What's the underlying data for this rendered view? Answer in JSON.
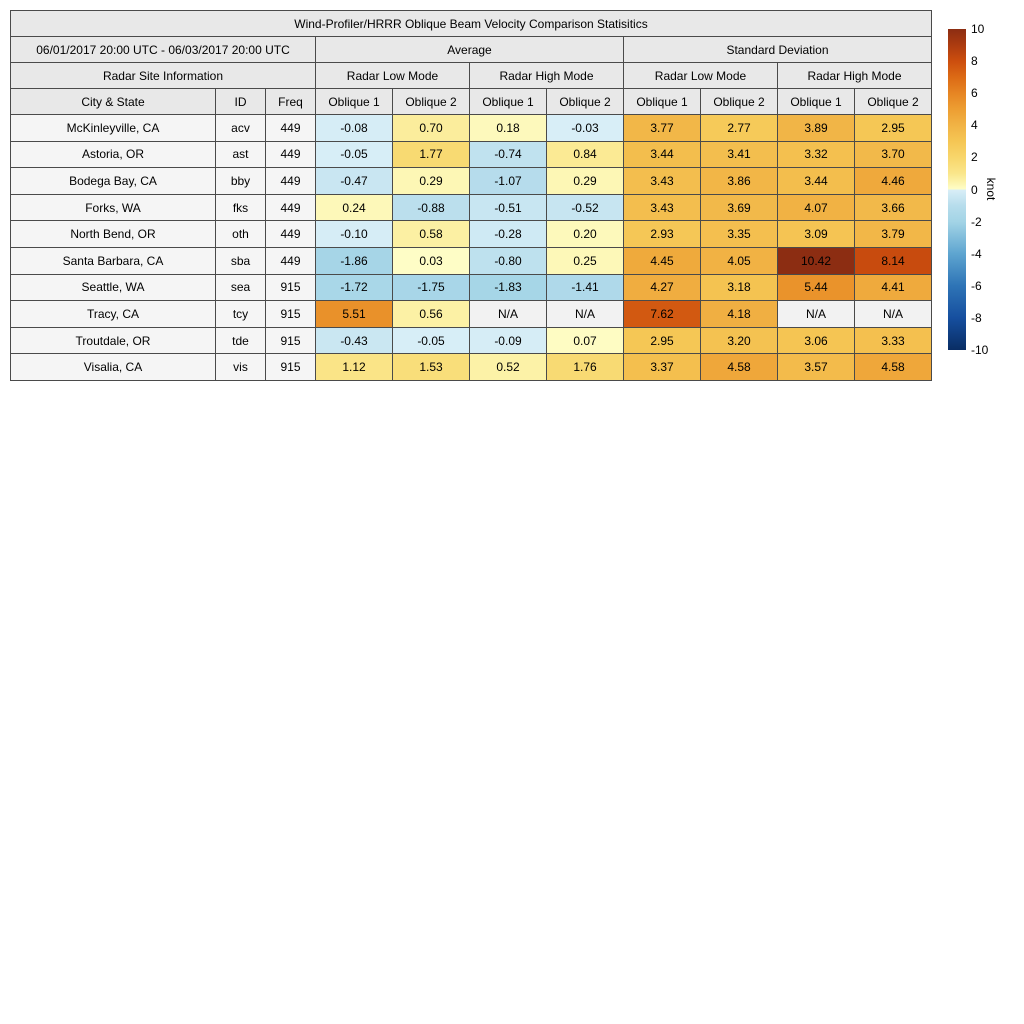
{
  "chart_data": {
    "type": "heatmap",
    "title": "Wind-Profiler/HRRR Oblique Beam Velocity Comparison Statisitics",
    "date_range": "06/01/2017 20:00 UTC - 06/03/2017 20:00 UTC",
    "groups": {
      "site_info": "Radar Site Information",
      "average": "Average",
      "std_dev": "Standard Deviation",
      "low_mode": "Radar Low Mode",
      "high_mode": "Radar High Mode"
    },
    "columns": {
      "city": "City & State",
      "id": "ID",
      "freq": "Freq",
      "oblique1": "Oblique 1",
      "oblique2": "Oblique 2"
    },
    "na_text": "N/A",
    "rows": [
      {
        "city": "McKinleyville, CA",
        "id": "acv",
        "freq": "449",
        "values": [
          -0.08,
          0.7,
          0.18,
          -0.03,
          3.77,
          2.77,
          3.89,
          2.95
        ]
      },
      {
        "city": "Astoria, OR",
        "id": "ast",
        "freq": "449",
        "values": [
          -0.05,
          1.77,
          -0.74,
          0.84,
          3.44,
          3.41,
          3.32,
          3.7
        ]
      },
      {
        "city": "Bodega Bay, CA",
        "id": "bby",
        "freq": "449",
        "values": [
          -0.47,
          0.29,
          -1.07,
          0.29,
          3.43,
          3.86,
          3.44,
          4.46
        ]
      },
      {
        "city": "Forks, WA",
        "id": "fks",
        "freq": "449",
        "values": [
          0.24,
          -0.88,
          -0.51,
          -0.52,
          3.43,
          3.69,
          4.07,
          3.66
        ]
      },
      {
        "city": "North Bend, OR",
        "id": "oth",
        "freq": "449",
        "values": [
          -0.1,
          0.58,
          -0.28,
          0.2,
          2.93,
          3.35,
          3.09,
          3.79
        ]
      },
      {
        "city": "Santa Barbara, CA",
        "id": "sba",
        "freq": "449",
        "values": [
          -1.86,
          0.03,
          -0.8,
          0.25,
          4.45,
          4.05,
          10.42,
          8.14
        ]
      },
      {
        "city": "Seattle, WA",
        "id": "sea",
        "freq": "915",
        "values": [
          -1.72,
          -1.75,
          -1.83,
          -1.41,
          4.27,
          3.18,
          5.44,
          4.41
        ]
      },
      {
        "city": "Tracy, CA",
        "id": "tcy",
        "freq": "915",
        "values": [
          5.51,
          0.56,
          null,
          null,
          7.62,
          4.18,
          null,
          null
        ]
      },
      {
        "city": "Troutdale, OR",
        "id": "tde",
        "freq": "915",
        "values": [
          -0.43,
          -0.05,
          -0.09,
          0.07,
          2.95,
          3.2,
          3.06,
          3.33
        ]
      },
      {
        "city": "Visalia, CA",
        "id": "vis",
        "freq": "915",
        "values": [
          1.12,
          1.53,
          0.52,
          1.76,
          3.37,
          4.58,
          3.57,
          4.58
        ]
      }
    ],
    "colorbar": {
      "label": "knot",
      "min": -10,
      "max": 10,
      "ticks": [
        10,
        8,
        6,
        4,
        2,
        0,
        -2,
        -4,
        -6,
        -8,
        -10
      ]
    },
    "colormap": {
      "stops": [
        [
          -10,
          "#092D64"
        ],
        [
          -8,
          "#164F9F"
        ],
        [
          -6,
          "#2E74B6"
        ],
        [
          -4,
          "#5EA5D0"
        ],
        [
          -2,
          "#A3D4E6"
        ],
        [
          -1,
          "#B7DDEC"
        ],
        [
          -0.03,
          "#D8EEF7"
        ],
        [
          0.03,
          "#FEFDC6"
        ],
        [
          0.5,
          "#FCF2A8"
        ],
        [
          1,
          "#FAE68B"
        ],
        [
          2,
          "#F8D66B"
        ],
        [
          3,
          "#F5C654"
        ],
        [
          4,
          "#F1B345"
        ],
        [
          5,
          "#ED9E32"
        ],
        [
          6,
          "#E68523"
        ],
        [
          7,
          "#DC6A15"
        ],
        [
          8,
          "#CC4E0E"
        ],
        [
          9,
          "#AC3B10"
        ],
        [
          10,
          "#8C2D12"
        ]
      ]
    }
  },
  "colors": {
    "header_bg": "#E8E8E8",
    "label_bg": "#F5F5F5",
    "na_bg": "#F2F2F2",
    "inner_border": "#4A4A4A",
    "outer_border": "#262626",
    "text": "#000000",
    "background": "#FFFFFF"
  }
}
